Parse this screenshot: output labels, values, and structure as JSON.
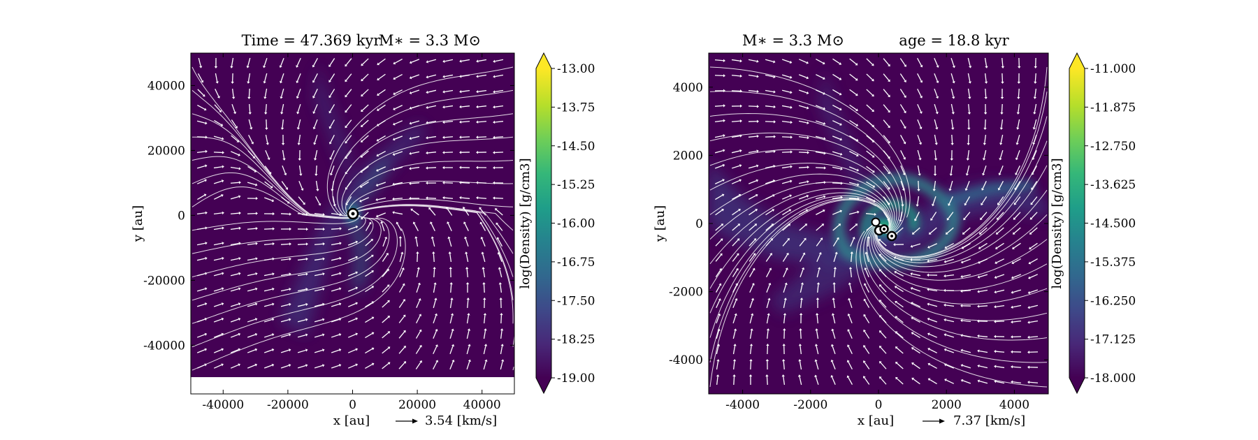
{
  "chart_data": [
    {
      "type": "heatmap",
      "title_left": "Time = 47.369 kyr",
      "title_right": "M$_*$ = 3.3 M$_\\odot$",
      "title_right_display": "M∗ = 3.3 M⊙",
      "xlabel": "x [au]",
      "ylabel": "y [au]",
      "xlim": [
        -50000,
        50000
      ],
      "ylim": [
        -55000,
        50000
      ],
      "xticks": [
        -40000,
        -20000,
        0,
        20000,
        40000
      ],
      "yticks": [
        40000,
        20000,
        0,
        -20000,
        -40000
      ],
      "data_extent_y": [
        -50000,
        50000
      ],
      "colorbar": {
        "label": "log(Density) [g/cm3]",
        "range": [
          -19.0,
          -13.0
        ],
        "ticks": [
          "-13.00",
          "-13.75",
          "-14.50",
          "-15.25",
          "-16.00",
          "-16.75",
          "-17.50",
          "-18.25",
          "-19.00"
        ],
        "extend": "both",
        "colormap": "viridis"
      },
      "velocity_key": {
        "value": 3.54,
        "label": "3.54 [km/s]"
      },
      "sinks": [
        {
          "x": 0,
          "y": 0
        }
      ],
      "overlays": [
        "velocity arrows (white)",
        "streamlines (white)"
      ]
    },
    {
      "type": "heatmap",
      "title_left": "M∗ = 3.3 M⊙",
      "title_right": "age = 18.8 kyr",
      "xlabel": "x [au]",
      "ylabel": "y [au]",
      "xlim": [
        -5000,
        5000
      ],
      "ylim": [
        -5000,
        5000
      ],
      "xticks": [
        -4000,
        -2000,
        0,
        2000,
        4000
      ],
      "yticks": [
        4000,
        2000,
        0,
        -2000,
        -4000
      ],
      "colorbar": {
        "label": "log(Density) [g/cm3]",
        "range": [
          -18.0,
          -11.0
        ],
        "ticks": [
          "-11.000",
          "-11.875",
          "-12.750",
          "-13.625",
          "-14.500",
          "-15.375",
          "-16.250",
          "-17.125",
          "-18.000"
        ],
        "extend": "both",
        "colormap": "viridis"
      },
      "velocity_key": {
        "value": 7.37,
        "label": "7.37 [km/s]"
      },
      "sinks": [
        {
          "x": -50,
          "y": -20
        },
        {
          "x": 150,
          "y": -150
        },
        {
          "x": 350,
          "y": -350
        },
        {
          "x": 0,
          "y": 0
        }
      ],
      "overlays": [
        "velocity arrows (white)",
        "streamlines (white)"
      ]
    }
  ],
  "colors": {
    "background": "#440154",
    "overlay": "#ffffff",
    "viridis": [
      "#440154",
      "#482878",
      "#3e4989",
      "#31688e",
      "#26828e",
      "#1f9e89",
      "#35b779",
      "#6ece58",
      "#b5de2b",
      "#fde725"
    ]
  }
}
